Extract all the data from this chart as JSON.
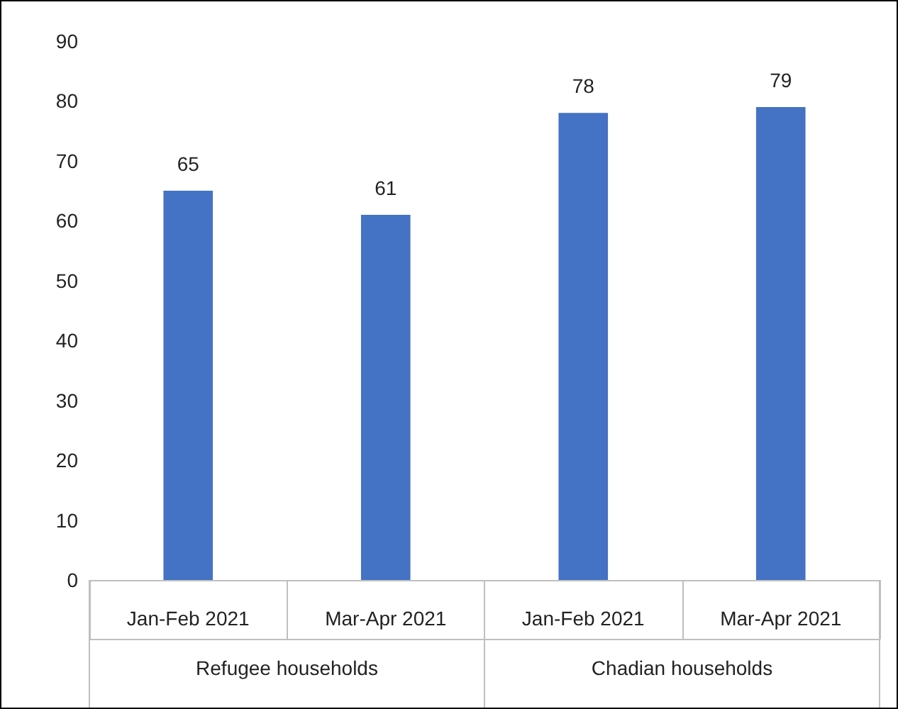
{
  "chart_data": {
    "type": "bar",
    "categories": [
      "Jan-Feb 2021",
      "Mar-Apr 2021",
      "Jan-Feb 2021",
      "Mar-Apr 2021"
    ],
    "values": [
      65,
      61,
      78,
      79
    ],
    "color": "#4472c4",
    "data_labels": true,
    "ylim": [
      0,
      90
    ],
    "yticks": [
      0,
      10,
      20,
      30,
      40,
      50,
      60,
      70,
      80,
      90
    ],
    "annotations": [
      "Refugee households",
      "Chadian households"
    ]
  }
}
